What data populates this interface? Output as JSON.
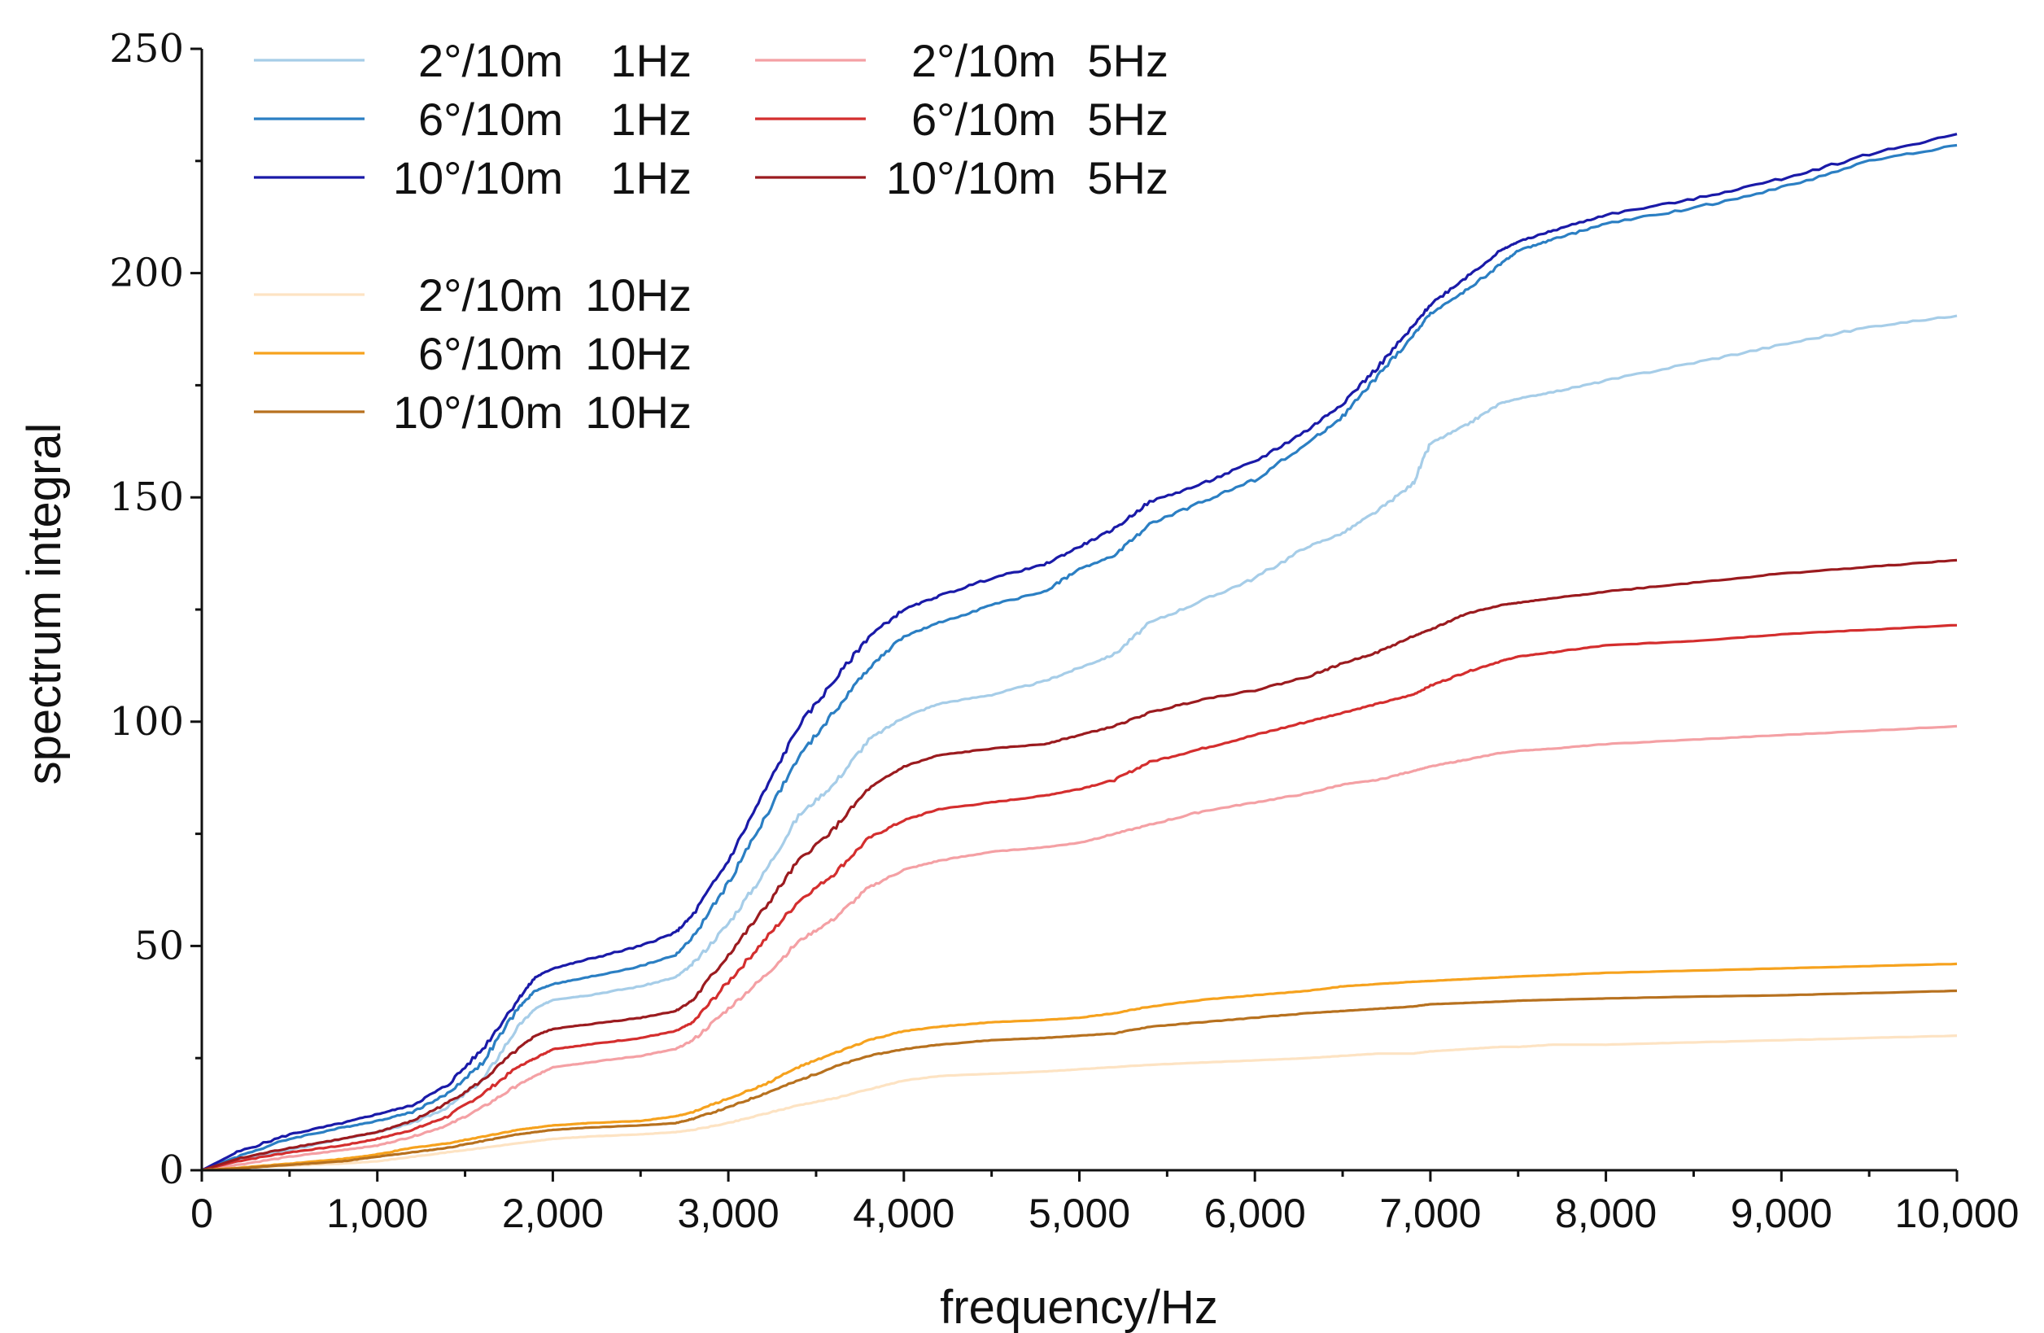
{
  "chart_data": {
    "type": "line",
    "title": "",
    "xlabel": "frequency/Hz",
    "ylabel": "spectrum integral",
    "xlim": [
      0,
      10000
    ],
    "ylim": [
      0,
      250
    ],
    "x_ticks": [
      {
        "value": 0,
        "label": "0"
      },
      {
        "value": 1000,
        "label": "1,000"
      },
      {
        "value": 2000,
        "label": "2,000"
      },
      {
        "value": 3000,
        "label": "3,000"
      },
      {
        "value": 4000,
        "label": "4,000"
      },
      {
        "value": 5000,
        "label": "5,000"
      },
      {
        "value": 6000,
        "label": "6,000"
      },
      {
        "value": 7000,
        "label": "7,000"
      },
      {
        "value": 8000,
        "label": "8,000"
      },
      {
        "value": 9000,
        "label": "9,000"
      },
      {
        "value": 10000,
        "label": "10,000"
      }
    ],
    "y_ticks": [
      {
        "value": 0,
        "label": "0"
      },
      {
        "value": 50,
        "label": "50"
      },
      {
        "value": 100,
        "label": "100"
      },
      {
        "value": 150,
        "label": "150"
      },
      {
        "value": 200,
        "label": "200"
      },
      {
        "value": 250,
        "label": "250"
      }
    ],
    "x": [
      0,
      200,
      500,
      800,
      1000,
      1200,
      1400,
      1600,
      1800,
      1900,
      2000,
      2200,
      2500,
      2700,
      2800,
      3000,
      3200,
      3400,
      3600,
      3800,
      4000,
      4200,
      4500,
      4800,
      5000,
      5200,
      5400,
      5700,
      6000,
      6300,
      6500,
      6700,
      6900,
      7000,
      7200,
      7400,
      7500,
      7700,
      8000,
      8500,
      9000,
      9500,
      10000
    ],
    "legend": {
      "columns": [
        [
          {
            "series": 0,
            "angle": "2°/10m",
            "freq": "1Hz"
          },
          {
            "series": 1,
            "angle": "6°/10m",
            "freq": "1Hz"
          },
          {
            "series": 2,
            "angle": "10°/10m",
            "freq": "1Hz"
          }
        ],
        [
          {
            "series": 3,
            "angle": "2°/10m",
            "freq": "5Hz"
          },
          {
            "series": 4,
            "angle": "6°/10m",
            "freq": "5Hz"
          },
          {
            "series": 5,
            "angle": "10°/10m",
            "freq": "5Hz"
          }
        ],
        [
          {
            "series": 6,
            "angle": "2°/10m",
            "freq": "10Hz"
          },
          {
            "series": 7,
            "angle": "6°/10m",
            "freq": "10Hz"
          },
          {
            "series": 8,
            "angle": "10°/10m",
            "freq": "10Hz"
          }
        ]
      ]
    },
    "series": [
      {
        "name": "2°/10m 1Hz",
        "color": "#a6cde8",
        "values": [
          0,
          2,
          4.5,
          7,
          8.5,
          10.5,
          14,
          20,
          32,
          36,
          38,
          39,
          41,
          43,
          46,
          55,
          66,
          79,
          86,
          96,
          101,
          104,
          106,
          109,
          112,
          115,
          122,
          127,
          132,
          139,
          142,
          147,
          153,
          162,
          166,
          171,
          172,
          173.5,
          176,
          180,
          184,
          188,
          190.5
        ]
      },
      {
        "name": "6°/10m 1Hz",
        "color": "#2b7fc3",
        "values": [
          0,
          3,
          7,
          9.5,
          11,
          13,
          17,
          24,
          36,
          40,
          41.5,
          43,
          45.5,
          48,
          52,
          64,
          78,
          92,
          102,
          112,
          119,
          122,
          126,
          129,
          134,
          137,
          144,
          149,
          154,
          162,
          168,
          177,
          186,
          191,
          196,
          202,
          205,
          207.5,
          211,
          214.5,
          219,
          225,
          228.5
        ]
      },
      {
        "name": "10°/10m 1Hz",
        "color": "#1a1aa8",
        "values": [
          0,
          4,
          8,
          10.5,
          12.5,
          14.5,
          19,
          27,
          38,
          43,
          45,
          47,
          50,
          53,
          57,
          69,
          84,
          99,
          109,
          119,
          125,
          128,
          132,
          135,
          139,
          143,
          149,
          153,
          158,
          165,
          171,
          179,
          188,
          193,
          199,
          205,
          207,
          209.5,
          213,
          216.5,
          221,
          226.5,
          231
        ]
      },
      {
        "name": "2°/10m 5Hz",
        "color": "#f4a0a4",
        "values": [
          0,
          1.2,
          3,
          4.5,
          5.5,
          7.5,
          10,
          14,
          19,
          21,
          23,
          24,
          25.5,
          27,
          29,
          36,
          43,
          51,
          56,
          63,
          67,
          69,
          71,
          72,
          73,
          75,
          77,
          80,
          82,
          84,
          86,
          87,
          89,
          90,
          91.5,
          93,
          93.5,
          94,
          95,
          96,
          97,
          98,
          99
        ]
      },
      {
        "name": "6°/10m 5Hz",
        "color": "#d42e2e",
        "values": [
          0,
          2,
          4,
          5.5,
          7,
          9,
          12,
          17,
          23,
          25,
          27,
          28,
          29.5,
          31,
          33,
          42,
          51,
          60,
          66,
          74,
          78,
          80.5,
          82,
          83.5,
          85,
          87,
          91,
          94,
          97,
          100,
          102,
          104,
          106,
          108,
          111,
          113.5,
          114.5,
          115.5,
          117,
          118,
          119.5,
          120.5,
          121.5
        ]
      },
      {
        "name": "10°/10m 5Hz",
        "color": "#9b1b1f",
        "values": [
          0,
          2.5,
          5,
          7,
          8.5,
          11,
          15,
          20,
          27,
          30,
          31.5,
          32.5,
          34,
          35.5,
          38,
          48,
          58,
          69,
          76,
          85,
          90,
          92.5,
          94,
          95,
          97,
          99,
          102,
          105,
          107,
          110,
          113,
          115.5,
          119,
          120.5,
          124,
          126,
          126.5,
          127.5,
          129,
          131,
          133,
          134.5,
          136
        ]
      },
      {
        "name": "2°/10m 10Hz",
        "color": "#fde3c3",
        "values": [
          0,
          0.5,
          1,
          1.5,
          2,
          3,
          4,
          5,
          6,
          6.5,
          7,
          7.5,
          8,
          8.5,
          9,
          10.5,
          12.5,
          14.5,
          16,
          18,
          20,
          21,
          21.5,
          22,
          22.5,
          23,
          23.5,
          24,
          24.5,
          25,
          25.5,
          26,
          26,
          26.5,
          27,
          27.5,
          27.5,
          28,
          28,
          28.5,
          29,
          29.5,
          30
        ]
      },
      {
        "name": "6°/10m 10Hz",
        "color": "#f6a21e",
        "values": [
          0,
          0.5,
          1.5,
          2.5,
          3.5,
          5,
          6,
          7.5,
          9,
          9.5,
          10,
          10.5,
          11,
          12,
          13,
          16,
          19,
          23,
          26,
          29,
          31,
          32,
          33,
          33.5,
          34,
          35,
          36.5,
          38,
          39,
          40,
          41,
          41.5,
          42,
          42.2,
          42.6,
          43,
          43.2,
          43.5,
          44,
          44.5,
          45,
          45.5,
          46
        ]
      },
      {
        "name": "10°/10m 10Hz",
        "color": "#b7711f",
        "values": [
          0,
          0.4,
          1.2,
          2,
          3,
          4,
          5,
          6.5,
          8,
          8.5,
          9,
          9.5,
          10,
          10.5,
          11.5,
          14,
          17,
          20,
          23,
          25.5,
          27,
          28,
          29,
          29.5,
          30,
          30.5,
          32,
          33,
          34,
          35,
          35.5,
          36,
          36.5,
          37,
          37.3,
          37.6,
          37.8,
          38,
          38.3,
          38.7,
          39,
          39.5,
          40
        ]
      }
    ]
  }
}
